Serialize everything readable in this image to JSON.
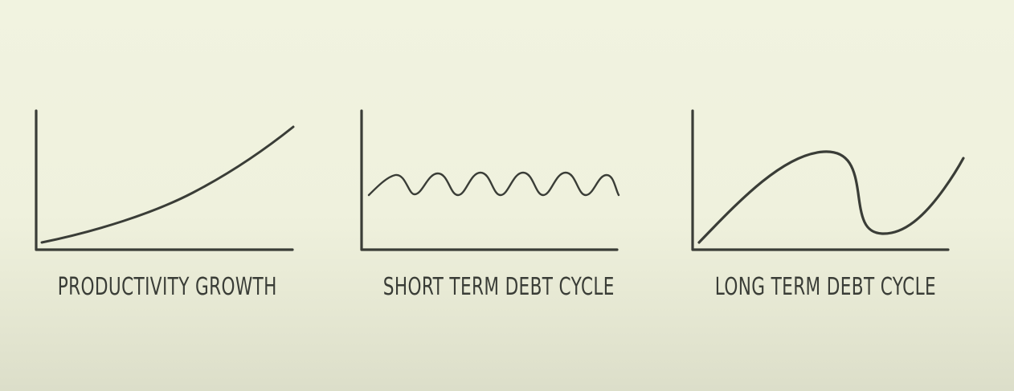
{
  "background_color": "#f0f2de",
  "ink_color": "#3a3d37",
  "panels": [
    {
      "label": "PRODUCTIVITY GROWTH",
      "curve_shape": "rising-slightly-convex"
    },
    {
      "label": "SHORT TERM DEBT CYCLE",
      "curve_shape": "repeating-small-waves"
    },
    {
      "label": "LONG TERM DEBT CYCLE",
      "curve_shape": "rise-peak-crash-recover"
    }
  ]
}
